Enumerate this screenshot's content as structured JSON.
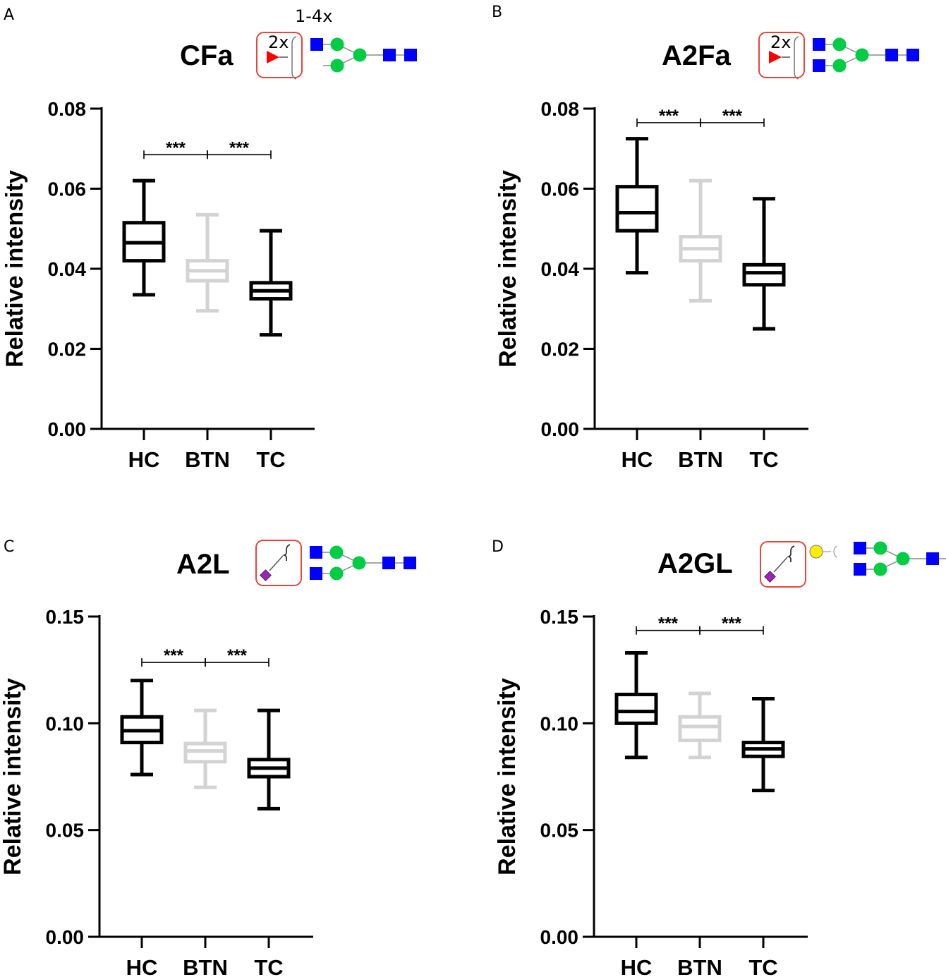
{
  "figure_note": "1-4x",
  "chart_data": [
    {
      "type": "box",
      "panel": "A",
      "title": "CFa",
      "glycan_note": "2x",
      "ylabel": "Relative intensity",
      "ylim": [
        0,
        0.08
      ],
      "yticks": [
        0.0,
        0.02,
        0.04,
        0.06,
        0.08
      ],
      "ytick_labels": [
        "0.00",
        "0.02",
        "0.04",
        "0.06",
        "0.08"
      ],
      "categories": [
        "HC",
        "BTN",
        "TC"
      ],
      "colors": [
        "#000000",
        "#d3d3d3",
        "#000000"
      ],
      "boxes": [
        {
          "min": 0.0335,
          "q1": 0.042,
          "median": 0.0465,
          "q3": 0.0515,
          "max": 0.062
        },
        {
          "min": 0.0295,
          "q1": 0.037,
          "median": 0.0395,
          "q3": 0.042,
          "max": 0.0535
        },
        {
          "min": 0.0235,
          "q1": 0.0325,
          "median": 0.0345,
          "q3": 0.0365,
          "max": 0.0495
        }
      ],
      "significance": [
        {
          "from": 0,
          "to": 1,
          "label": "***"
        },
        {
          "from": 1,
          "to": 2,
          "label": "***"
        }
      ],
      "bracket_y": 0.0685
    },
    {
      "type": "box",
      "panel": "B",
      "title": "A2Fa",
      "glycan_note": "2x",
      "ylabel": "Relative intensity",
      "ylim": [
        0,
        0.08
      ],
      "yticks": [
        0.0,
        0.02,
        0.04,
        0.06,
        0.08
      ],
      "ytick_labels": [
        "0.00",
        "0.02",
        "0.04",
        "0.06",
        "0.08"
      ],
      "categories": [
        "HC",
        "BTN",
        "TC"
      ],
      "colors": [
        "#000000",
        "#d3d3d3",
        "#000000"
      ],
      "boxes": [
        {
          "min": 0.039,
          "q1": 0.0495,
          "median": 0.054,
          "q3": 0.0605,
          "max": 0.0725
        },
        {
          "min": 0.032,
          "q1": 0.042,
          "median": 0.045,
          "q3": 0.048,
          "max": 0.062
        },
        {
          "min": 0.025,
          "q1": 0.036,
          "median": 0.039,
          "q3": 0.041,
          "max": 0.0575
        }
      ],
      "significance": [
        {
          "from": 0,
          "to": 1,
          "label": "***"
        },
        {
          "from": 1,
          "to": 2,
          "label": "***"
        }
      ],
      "bracket_y": 0.0765
    },
    {
      "type": "box",
      "panel": "C",
      "title": "A2L",
      "ylabel": "Relative intensity",
      "ylim": [
        0,
        0.15
      ],
      "yticks": [
        0.0,
        0.05,
        0.1,
        0.15
      ],
      "ytick_labels": [
        "0.00",
        "0.05",
        "0.10",
        "0.15"
      ],
      "categories": [
        "HC",
        "BTN",
        "TC"
      ],
      "colors": [
        "#000000",
        "#d3d3d3",
        "#000000"
      ],
      "boxes": [
        {
          "min": 0.076,
          "q1": 0.091,
          "median": 0.0965,
          "q3": 0.103,
          "max": 0.12
        },
        {
          "min": 0.07,
          "q1": 0.082,
          "median": 0.087,
          "q3": 0.0905,
          "max": 0.106
        },
        {
          "min": 0.06,
          "q1": 0.075,
          "median": 0.079,
          "q3": 0.083,
          "max": 0.106
        }
      ],
      "significance": [
        {
          "from": 0,
          "to": 1,
          "label": "***"
        },
        {
          "from": 1,
          "to": 2,
          "label": "***"
        }
      ],
      "bracket_y": 0.1285
    },
    {
      "type": "box",
      "panel": "D",
      "title": "A2GL",
      "ylabel": "Relative intensity",
      "ylim": [
        0,
        0.15
      ],
      "yticks": [
        0.0,
        0.05,
        0.1,
        0.15
      ],
      "ytick_labels": [
        "0.00",
        "0.05",
        "0.10",
        "0.15"
      ],
      "categories": [
        "HC",
        "BTN",
        "TC"
      ],
      "colors": [
        "#000000",
        "#d3d3d3",
        "#000000"
      ],
      "boxes": [
        {
          "min": 0.084,
          "q1": 0.1,
          "median": 0.1055,
          "q3": 0.1135,
          "max": 0.133
        },
        {
          "min": 0.084,
          "q1": 0.092,
          "median": 0.0985,
          "q3": 0.103,
          "max": 0.114
        },
        {
          "min": 0.0685,
          "q1": 0.0845,
          "median": 0.088,
          "q3": 0.091,
          "max": 0.1115
        }
      ],
      "significance": [
        {
          "from": 0,
          "to": 1,
          "label": "***"
        },
        {
          "from": 1,
          "to": 2,
          "label": "***"
        }
      ],
      "bracket_y": 0.1435
    }
  ],
  "glycan_colors": {
    "fucose": "#ff0000",
    "glcnac": "#0000ff",
    "mannose": "#00cc44",
    "galactose": "#ffee00",
    "sialic_acid": "#a020c0",
    "frame": "#e8453c"
  }
}
